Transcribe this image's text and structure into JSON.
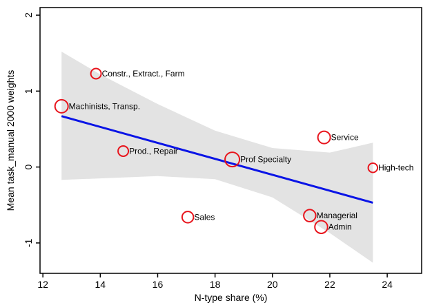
{
  "chart_data": {
    "type": "scatter",
    "title": "",
    "xlabel": "N-type share (%)",
    "ylabel": "Mean task_manual 2000 weights",
    "xlim": [
      11.9,
      25.2
    ],
    "ylim": [
      -1.4,
      2.1
    ],
    "xticks": [
      {
        "value": 12,
        "label": "12"
      },
      {
        "value": 14,
        "label": "14"
      },
      {
        "value": 16,
        "label": "16"
      },
      {
        "value": 18,
        "label": "18"
      },
      {
        "value": 20,
        "label": "20"
      },
      {
        "value": 22,
        "label": "22"
      },
      {
        "value": 24,
        "label": "24"
      }
    ],
    "yticks": [
      {
        "value": -1,
        "label": "-1"
      },
      {
        "value": 0,
        "label": "0"
      },
      {
        "value": 1,
        "label": "1"
      },
      {
        "value": 2,
        "label": "2"
      }
    ],
    "grid": false,
    "points": [
      {
        "label": "Constr., Extract., Farm",
        "x": 13.85,
        "y": 1.23,
        "weight": 0.6
      },
      {
        "label": "Machinists, Transp.",
        "x": 12.65,
        "y": 0.8,
        "weight": 1.0
      },
      {
        "label": "Prod., Repair",
        "x": 14.8,
        "y": 0.21,
        "weight": 0.6
      },
      {
        "label": "Prof Specialty",
        "x": 18.6,
        "y": 0.1,
        "weight": 1.2
      },
      {
        "label": "Service",
        "x": 21.8,
        "y": 0.39,
        "weight": 0.9
      },
      {
        "label": "High-tech",
        "x": 23.5,
        "y": -0.01,
        "weight": 0.45
      },
      {
        "label": "Sales",
        "x": 17.05,
        "y": -0.66,
        "weight": 0.75
      },
      {
        "label": "Managerial",
        "x": 21.3,
        "y": -0.64,
        "weight": 0.85
      },
      {
        "label": "Admin",
        "x": 21.7,
        "y": -0.79,
        "weight": 0.95
      }
    ],
    "fit_line": {
      "x": [
        12.65,
        23.5
      ],
      "y": [
        0.67,
        -0.47
      ]
    },
    "confidence_band": {
      "x": [
        12.65,
        14,
        16,
        18,
        20,
        22,
        23.5
      ],
      "upper": [
        1.52,
        1.22,
        0.83,
        0.48,
        0.25,
        0.19,
        0.32
      ],
      "lower": [
        -0.17,
        -0.15,
        -0.12,
        -0.16,
        -0.4,
        -0.87,
        -1.26
      ]
    },
    "colors": {
      "marker": "#e8141c",
      "fit_line": "#0a14e6",
      "band": "#e3e3e3",
      "axis": "#000000"
    }
  }
}
